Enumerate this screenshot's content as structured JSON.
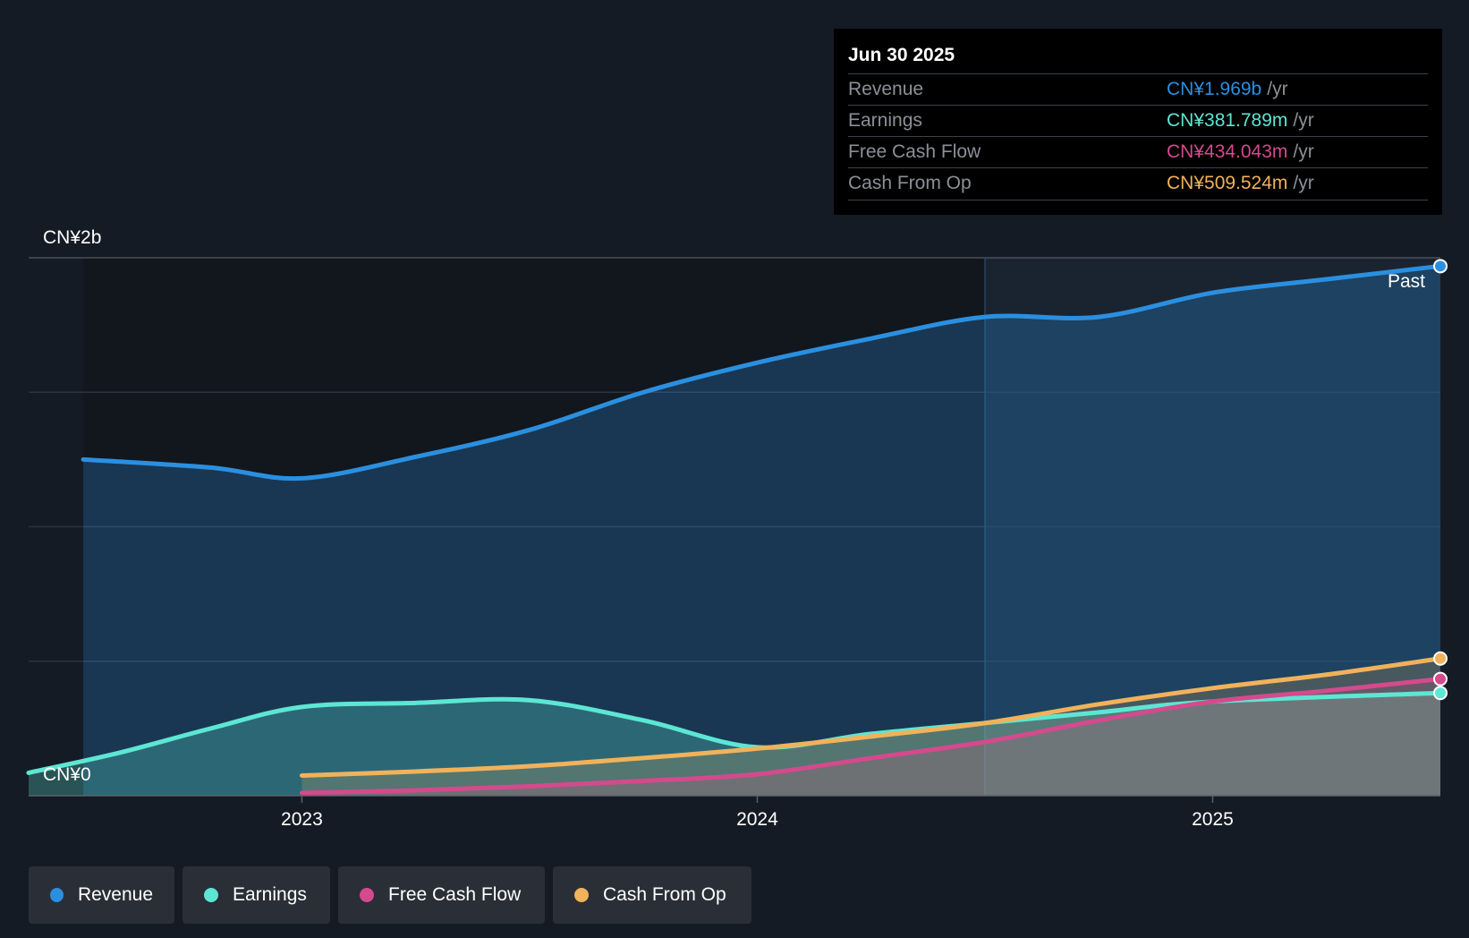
{
  "tooltip": {
    "date": "Jun 30 2025",
    "rows": [
      {
        "label": "Revenue",
        "value": "CN¥1.969b",
        "unit": "/yr",
        "color": "#2b8fe0"
      },
      {
        "label": "Earnings",
        "value": "CN¥381.789m",
        "unit": "/yr",
        "color": "#5de6d3"
      },
      {
        "label": "Free Cash Flow",
        "value": "CN¥434.043m",
        "unit": "/yr",
        "color": "#d44a8d"
      },
      {
        "label": "Cash From Op",
        "value": "CN¥509.524m",
        "unit": "/yr",
        "color": "#f0b25a"
      }
    ]
  },
  "legend": [
    {
      "label": "Revenue",
      "color": "#2b8fe0"
    },
    {
      "label": "Earnings",
      "color": "#5de6d3"
    },
    {
      "label": "Free Cash Flow",
      "color": "#d44a8d"
    },
    {
      "label": "Cash From Op",
      "color": "#f0b25a"
    }
  ],
  "chart_data": {
    "type": "area",
    "title": "",
    "past_label": "Past",
    "y_top_label": "CN¥2b",
    "y_bottom_label": "CN¥0",
    "ylim": [
      0,
      2.0
    ],
    "x_range": [
      2022.4,
      2025.5
    ],
    "past_start": 2024.5,
    "x_ticks": [
      {
        "value": 2023,
        "label": "2023"
      },
      {
        "value": 2024,
        "label": "2024"
      },
      {
        "value": 2025,
        "label": "2025"
      }
    ],
    "series": [
      {
        "name": "Revenue",
        "color": "#2b8fe0",
        "points": [
          [
            2022.52,
            1.25
          ],
          [
            2022.8,
            1.22
          ],
          [
            2023.0,
            1.18
          ],
          [
            2023.25,
            1.26
          ],
          [
            2023.5,
            1.36
          ],
          [
            2023.75,
            1.5
          ],
          [
            2024.0,
            1.61
          ],
          [
            2024.25,
            1.7
          ],
          [
            2024.5,
            1.78
          ],
          [
            2024.75,
            1.78
          ],
          [
            2025.0,
            1.87
          ],
          [
            2025.25,
            1.92
          ],
          [
            2025.5,
            1.969
          ]
        ]
      },
      {
        "name": "Earnings",
        "color": "#5de6d3",
        "points": [
          [
            2022.4,
            0.085
          ],
          [
            2022.6,
            0.16
          ],
          [
            2022.8,
            0.25
          ],
          [
            2023.0,
            0.33
          ],
          [
            2023.25,
            0.345
          ],
          [
            2023.5,
            0.355
          ],
          [
            2023.75,
            0.28
          ],
          [
            2024.0,
            0.18
          ],
          [
            2024.25,
            0.23
          ],
          [
            2024.5,
            0.27
          ],
          [
            2024.75,
            0.31
          ],
          [
            2025.0,
            0.35
          ],
          [
            2025.5,
            0.382
          ]
        ]
      },
      {
        "name": "Free Cash Flow",
        "color": "#d44a8d",
        "points": [
          [
            2023.0,
            0.01
          ],
          [
            2023.25,
            0.02
          ],
          [
            2023.5,
            0.035
          ],
          [
            2023.75,
            0.055
          ],
          [
            2024.0,
            0.08
          ],
          [
            2024.25,
            0.14
          ],
          [
            2024.5,
            0.2
          ],
          [
            2024.75,
            0.28
          ],
          [
            2025.0,
            0.35
          ],
          [
            2025.25,
            0.39
          ],
          [
            2025.5,
            0.434
          ]
        ]
      },
      {
        "name": "Cash From Op",
        "color": "#f0b25a",
        "points": [
          [
            2023.0,
            0.075
          ],
          [
            2023.25,
            0.09
          ],
          [
            2023.5,
            0.11
          ],
          [
            2023.75,
            0.14
          ],
          [
            2024.0,
            0.175
          ],
          [
            2024.25,
            0.22
          ],
          [
            2024.5,
            0.27
          ],
          [
            2024.75,
            0.34
          ],
          [
            2025.0,
            0.4
          ],
          [
            2025.25,
            0.45
          ],
          [
            2025.5,
            0.51
          ]
        ]
      }
    ]
  }
}
